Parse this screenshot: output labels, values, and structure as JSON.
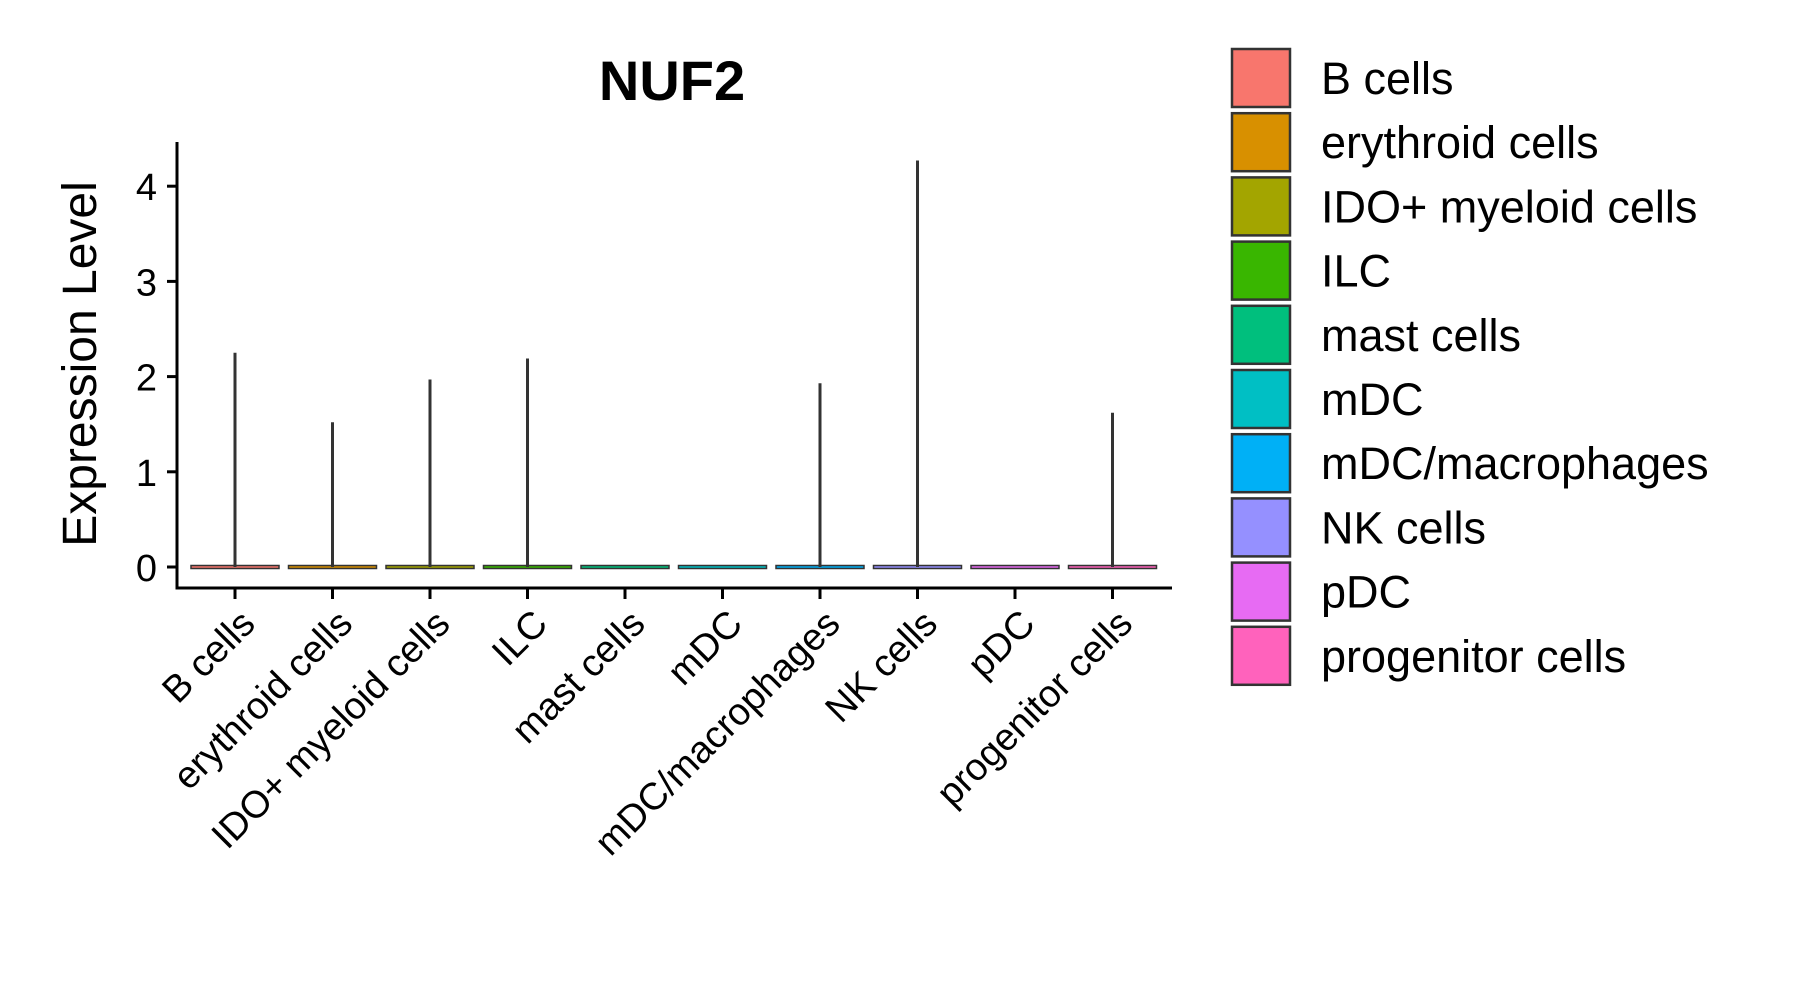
{
  "chart_data": {
    "type": "violin",
    "title": "NUF2",
    "xlabel": "",
    "ylabel": "Expression Level",
    "ylim": [
      -0.22,
      4.5
    ],
    "yticks": [
      0,
      1,
      2,
      3,
      4
    ],
    "ytick_labels": [
      "0",
      "1",
      "2",
      "3",
      "4"
    ],
    "grid": false,
    "legend_position": "right",
    "categories": [
      "B cells",
      "erythroid cells",
      "IDO+ myeloid cells",
      "ILC",
      "mast cells",
      "mDC",
      "mDC/macrophages",
      "NK cells",
      "pDC",
      "progenitor cells"
    ],
    "max_values": [
      2.25,
      1.52,
      1.97,
      2.19,
      0,
      0,
      1.93,
      4.27,
      0,
      1.62
    ],
    "colors": [
      "#F8766D",
      "#D89000",
      "#A3A500",
      "#39B600",
      "#00BF7D",
      "#00BFC4",
      "#00B0F6",
      "#9590FF",
      "#E76BF3",
      "#FF62BC"
    ],
    "legend": [
      "B cells",
      "erythroid cells",
      "IDO+ myeloid cells",
      "ILC",
      "mast cells",
      "mDC",
      "mDC/macrophages",
      "NK cells",
      "pDC",
      "progenitor cells"
    ]
  }
}
